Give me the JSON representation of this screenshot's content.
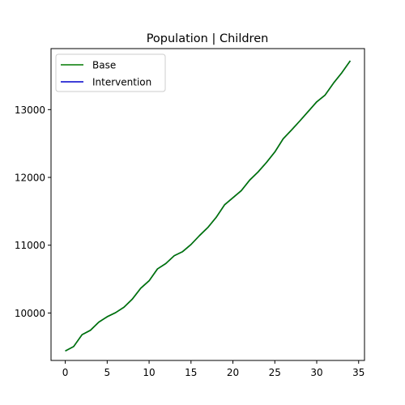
{
  "chart_data": {
    "type": "line",
    "title": "Population | Children",
    "xlabel": "",
    "ylabel": "",
    "xlim": [
      -1.7,
      35.7
    ],
    "ylim": [
      9300,
      13900
    ],
    "xticks": [
      0,
      5,
      10,
      15,
      20,
      25,
      30,
      35
    ],
    "yticks": [
      10000,
      11000,
      12000,
      13000
    ],
    "grid": false,
    "legend_position": "upper-left",
    "x": [
      0,
      1,
      2,
      3,
      4,
      5,
      6,
      7,
      8,
      9,
      10,
      11,
      12,
      13,
      14,
      15,
      16,
      17,
      18,
      19,
      20,
      21,
      22,
      23,
      24,
      25,
      26,
      27,
      28,
      29,
      30,
      31,
      32,
      33,
      34
    ],
    "series": [
      {
        "name": "Base",
        "color": "#007a00",
        "values": [
          9440,
          9505,
          9680,
          9745,
          9865,
          9945,
          10005,
          10085,
          10205,
          10365,
          10475,
          10650,
          10730,
          10845,
          10905,
          11010,
          11140,
          11260,
          11410,
          11595,
          11700,
          11805,
          11960,
          12080,
          12220,
          12375,
          12570,
          12700,
          12835,
          12975,
          13115,
          13215,
          13390,
          13545,
          13720
        ]
      },
      {
        "name": "Intervention",
        "color": "#0000cc",
        "values": [
          9440,
          9505,
          9680,
          9745,
          9865,
          9945,
          10005,
          10085,
          10205,
          10365,
          10475,
          10650,
          10730,
          10845,
          10905,
          11010,
          11140,
          11260,
          11410,
          11595,
          11700,
          11805,
          11960,
          12080,
          12220,
          12375,
          12570,
          12700,
          12835,
          12975,
          13115,
          13215,
          13390,
          13545,
          13720
        ]
      }
    ]
  }
}
